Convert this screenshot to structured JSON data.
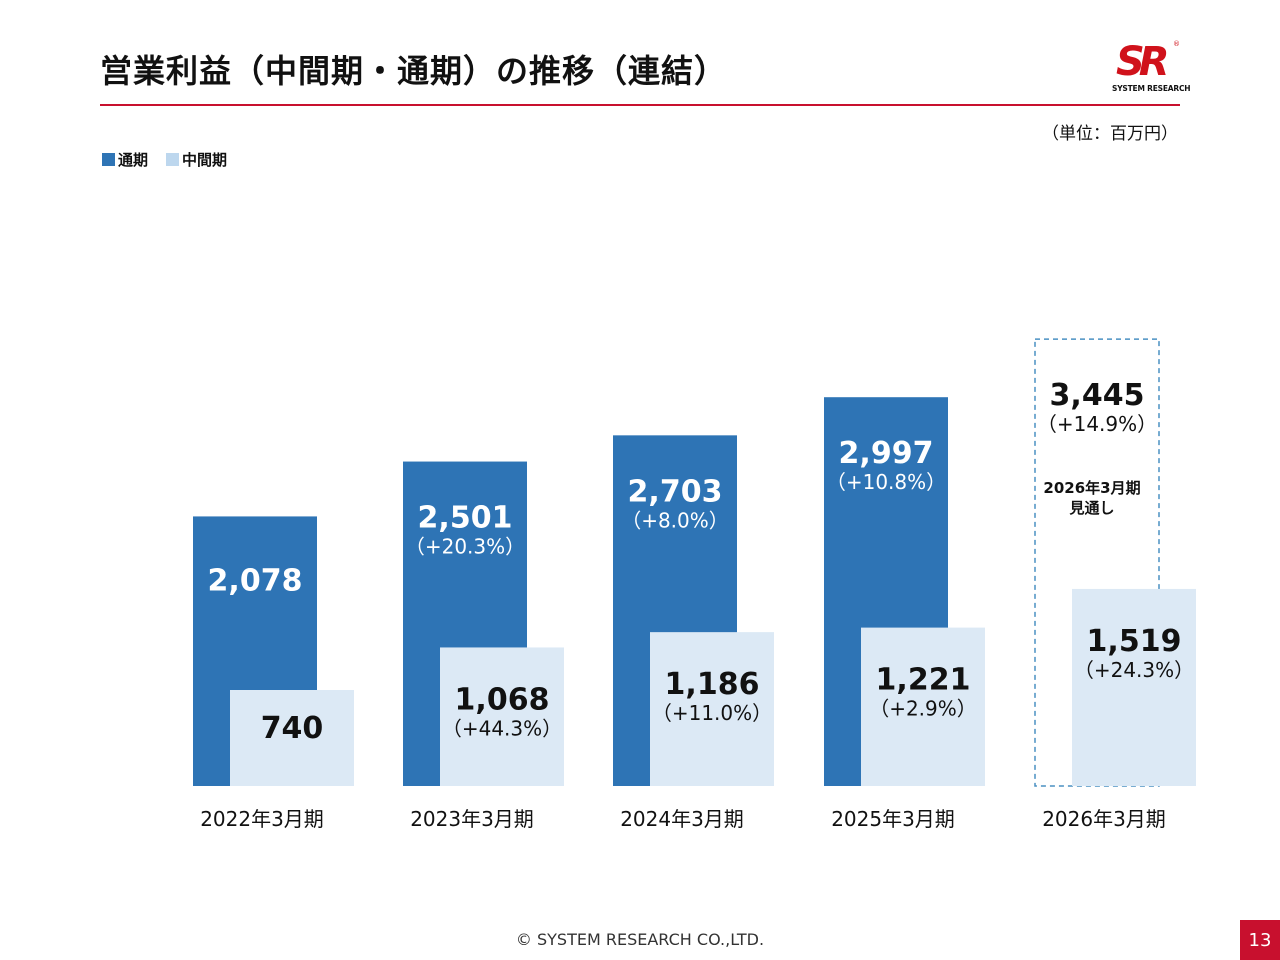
{
  "title": "営業利益（中間期・通期）の推移（連結）",
  "logo": {
    "mark": "SR",
    "registered": "®",
    "name": "SYSTEM RESEARCH"
  },
  "unit_label": "（単位：百万円）",
  "legend": [
    {
      "label": "通期",
      "color": "#2e74b5"
    },
    {
      "label": "中間期",
      "color": "#bdd7ee"
    }
  ],
  "colors": {
    "full_year": "#2e74b5",
    "interim": "#dce9f5",
    "dashed": "#4a90c2",
    "accent": "#c8102e"
  },
  "chart_data": {
    "type": "bar",
    "categories": [
      "2022年3月期",
      "2023年3月期",
      "2024年3月期",
      "2025年3月期",
      "2026年3月期"
    ],
    "series": [
      {
        "name": "通期",
        "values": [
          2078,
          2501,
          2703,
          2997,
          3445
        ],
        "value_labels": [
          "2,078",
          "2,501",
          "2,703",
          "2,997",
          "3,445"
        ],
        "growth_labels": [
          "",
          "（+20.3%）",
          "（+8.0%）",
          "（+10.8%）",
          "（+14.9%）"
        ],
        "forecast": [
          false,
          false,
          false,
          false,
          true
        ]
      },
      {
        "name": "中間期",
        "values": [
          740,
          1068,
          1186,
          1221,
          1519
        ],
        "value_labels": [
          "740",
          "1,068",
          "1,186",
          "1,221",
          "1,519"
        ],
        "growth_labels": [
          "",
          "（+44.3%）",
          "（+11.0%）",
          "（+2.9%）",
          "（+24.3%）"
        ]
      }
    ],
    "forecast_note": [
      "2026年3月期",
      "見通し"
    ],
    "ylim": [
      0,
      3700
    ],
    "grid": false,
    "legend_position": "top-left"
  },
  "footer": "© SYSTEM RESEARCH CO.,LTD.",
  "page_number": "13"
}
